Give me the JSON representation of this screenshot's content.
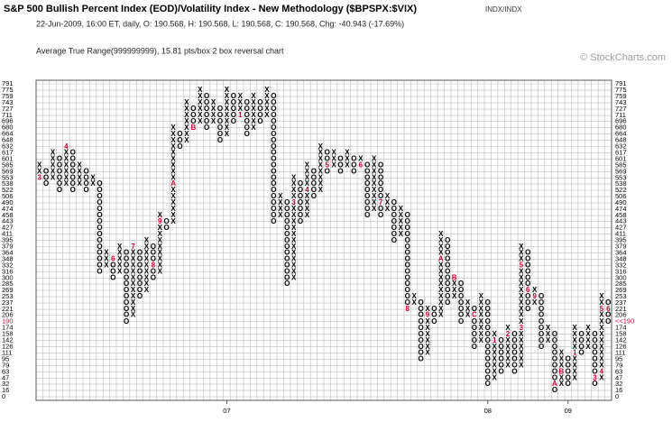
{
  "chart_data": {
    "type": "point_and_figure",
    "title": "S&P 500 Bullish Percent Index (EOD)/Volatility Index - New Methodology ($BPSPX:$VIX)",
    "exchange": "INDX/INDX",
    "subtitle": "22-Jun-2009, 16:00 ET, daily, O: 190.568, H: 190.568, L: 190.568, C: 190.568, Chg: -40.943 (-17.69%)",
    "description": "Average True Range(999999999), 15.81 pts/box 2 box reversal chart",
    "copyright": "© StockCharts.com",
    "last_price": {
      "value": 190,
      "label": "<<190"
    },
    "ylim": [
      0,
      791
    ],
    "yticks": [
      791,
      775,
      759,
      743,
      727,
      711,
      696,
      680,
      664,
      648,
      632,
      617,
      601,
      585,
      569,
      553,
      538,
      522,
      506,
      490,
      474,
      458,
      443,
      427,
      411,
      395,
      379,
      364,
      348,
      332,
      316,
      300,
      285,
      269,
      253,
      237,
      221,
      206,
      190,
      174,
      158,
      142,
      126,
      111,
      95,
      79,
      63,
      47,
      32,
      16,
      0
    ],
    "x_color": "#000000",
    "o_color": "#000000",
    "mark_color": "#cc0033",
    "grid": true,
    "columns": [
      {
        "kind": "X",
        "low": 553,
        "high": 585,
        "marks": [
          {
            "price": 553,
            "label": "3"
          }
        ]
      },
      {
        "kind": "O",
        "low": 538,
        "high": 569
      },
      {
        "kind": "X",
        "low": 553,
        "high": 617
      },
      {
        "kind": "O",
        "low": 522,
        "high": 601
      },
      {
        "kind": "X",
        "low": 538,
        "high": 632,
        "marks": [
          {
            "price": 632,
            "label": "4"
          }
        ]
      },
      {
        "kind": "O",
        "low": 522,
        "high": 617
      },
      {
        "kind": "X",
        "low": 538,
        "high": 585
      },
      {
        "kind": "O",
        "low": 522,
        "high": 569
      },
      {
        "kind": "X",
        "low": 538,
        "high": 553
      },
      {
        "kind": "O",
        "low": 316,
        "high": 538
      },
      {
        "kind": "X",
        "low": 332,
        "high": 364
      },
      {
        "kind": "O",
        "low": 300,
        "high": 348,
        "marks": [
          {
            "price": 348,
            "label": "6"
          }
        ]
      },
      {
        "kind": "X",
        "low": 316,
        "high": 379
      },
      {
        "kind": "O",
        "low": 190,
        "high": 364
      },
      {
        "kind": "X",
        "low": 206,
        "high": 379,
        "marks": [
          {
            "price": 379,
            "label": "7"
          }
        ]
      },
      {
        "kind": "O",
        "low": 253,
        "high": 364
      },
      {
        "kind": "X",
        "low": 269,
        "high": 395
      },
      {
        "kind": "O",
        "low": 300,
        "high": 379,
        "marks": [
          {
            "price": 332,
            "label": "8"
          }
        ]
      },
      {
        "kind": "X",
        "low": 316,
        "high": 458,
        "marks": [
          {
            "price": 443,
            "label": "9"
          }
        ]
      },
      {
        "kind": "O",
        "low": 427,
        "high": 443
      },
      {
        "kind": "X",
        "low": 443,
        "high": 680,
        "marks": [
          {
            "price": 538,
            "label": "A"
          }
        ]
      },
      {
        "kind": "O",
        "low": 632,
        "high": 664
      },
      {
        "kind": "X",
        "low": 648,
        "high": 743
      },
      {
        "kind": "O",
        "low": 680,
        "high": 727,
        "marks": [
          {
            "price": 680,
            "label": "B"
          }
        ]
      },
      {
        "kind": "X",
        "low": 696,
        "high": 775
      },
      {
        "kind": "O",
        "low": 680,
        "high": 759
      },
      {
        "kind": "X",
        "low": 696,
        "high": 743
      },
      {
        "kind": "O",
        "low": 648,
        "high": 727
      },
      {
        "kind": "X",
        "low": 664,
        "high": 775,
        "x_label": "07"
      },
      {
        "kind": "O",
        "low": 696,
        "high": 759
      },
      {
        "kind": "X",
        "low": 711,
        "high": 759,
        "marks": [
          {
            "price": 711,
            "label": "1"
          }
        ]
      },
      {
        "kind": "O",
        "low": 664,
        "high": 743
      },
      {
        "kind": "X",
        "low": 680,
        "high": 759
      },
      {
        "kind": "O",
        "low": 696,
        "high": 743
      },
      {
        "kind": "X",
        "low": 711,
        "high": 775
      },
      {
        "kind": "O",
        "low": 443,
        "high": 759
      },
      {
        "kind": "X",
        "low": 458,
        "high": 506
      },
      {
        "kind": "O",
        "low": 285,
        "high": 490
      },
      {
        "kind": "X",
        "low": 300,
        "high": 553,
        "marks": [
          {
            "price": 490,
            "label": "3"
          }
        ]
      },
      {
        "kind": "O",
        "low": 443,
        "high": 538
      },
      {
        "kind": "X",
        "low": 458,
        "high": 585,
        "marks": [
          {
            "price": 522,
            "label": "4"
          }
        ]
      },
      {
        "kind": "O",
        "low": 506,
        "high": 569
      },
      {
        "kind": "X",
        "low": 522,
        "high": 632
      },
      {
        "kind": "O",
        "low": 569,
        "high": 617,
        "marks": [
          {
            "price": 585,
            "label": "5"
          }
        ]
      },
      {
        "kind": "X",
        "low": 585,
        "high": 617
      },
      {
        "kind": "O",
        "low": 569,
        "high": 601
      },
      {
        "kind": "X",
        "low": 585,
        "high": 617
      },
      {
        "kind": "O",
        "low": 569,
        "high": 601
      },
      {
        "kind": "X",
        "low": 585,
        "high": 601,
        "marks": [
          {
            "price": 585,
            "label": "6"
          }
        ]
      },
      {
        "kind": "O",
        "low": 458,
        "high": 585
      },
      {
        "kind": "X",
        "low": 474,
        "high": 601
      },
      {
        "kind": "O",
        "low": 458,
        "high": 585,
        "marks": [
          {
            "price": 490,
            "label": "7"
          }
        ]
      },
      {
        "kind": "X",
        "low": 474,
        "high": 506
      },
      {
        "kind": "O",
        "low": 395,
        "high": 490
      },
      {
        "kind": "X",
        "low": 411,
        "high": 474
      },
      {
        "kind": "O",
        "low": 221,
        "high": 458,
        "marks": [
          {
            "price": 221,
            "label": "8"
          }
        ]
      },
      {
        "kind": "X",
        "low": 237,
        "high": 253
      },
      {
        "kind": "O",
        "low": 95,
        "high": 237
      },
      {
        "kind": "X",
        "low": 111,
        "high": 221,
        "marks": [
          {
            "price": 206,
            "label": "9"
          }
        ]
      },
      {
        "kind": "O",
        "low": 190,
        "high": 221
      },
      {
        "kind": "X",
        "low": 206,
        "high": 411,
        "marks": [
          {
            "price": 348,
            "label": "A"
          }
        ]
      },
      {
        "kind": "O",
        "low": 237,
        "high": 395
      },
      {
        "kind": "X",
        "low": 253,
        "high": 300,
        "marks": [
          {
            "price": 300,
            "label": "B"
          }
        ]
      },
      {
        "kind": "O",
        "low": 190,
        "high": 285
      },
      {
        "kind": "X",
        "low": 206,
        "high": 237
      },
      {
        "kind": "O",
        "low": 126,
        "high": 221,
        "marks": [
          {
            "price": 206,
            "label": "C"
          }
        ]
      },
      {
        "kind": "X",
        "low": 142,
        "high": 253
      },
      {
        "kind": "O",
        "low": 32,
        "high": 237,
        "x_label": "08"
      },
      {
        "kind": "X",
        "low": 47,
        "high": 158,
        "marks": [
          {
            "price": 142,
            "label": "1"
          }
        ]
      },
      {
        "kind": "O",
        "low": 63,
        "high": 142
      },
      {
        "kind": "X",
        "low": 79,
        "high": 174,
        "marks": [
          {
            "price": 158,
            "label": "2"
          }
        ]
      },
      {
        "kind": "O",
        "low": 63,
        "high": 158
      },
      {
        "kind": "X",
        "low": 79,
        "high": 379,
        "marks": [
          {
            "price": 174,
            "label": "3"
          },
          {
            "price": 332,
            "label": "5"
          }
        ]
      },
      {
        "kind": "O",
        "low": 221,
        "high": 364,
        "marks": [
          {
            "price": 269,
            "label": "6"
          }
        ]
      },
      {
        "kind": "X",
        "low": 237,
        "high": 269,
        "marks": [
          {
            "price": 253,
            "label": "9"
          }
        ]
      },
      {
        "kind": "O",
        "low": 126,
        "high": 253
      },
      {
        "kind": "X",
        "low": 142,
        "high": 174
      },
      {
        "kind": "O",
        "low": 16,
        "high": 158,
        "marks": [
          {
            "price": 32,
            "label": "A"
          }
        ]
      },
      {
        "kind": "X",
        "low": 32,
        "high": 111,
        "marks": [
          {
            "price": 63,
            "label": "B"
          }
        ]
      },
      {
        "kind": "O",
        "low": 32,
        "high": 95,
        "x_label": "09"
      },
      {
        "kind": "X",
        "low": 47,
        "high": 174,
        "marks": [
          {
            "price": 111,
            "label": "1"
          }
        ]
      },
      {
        "kind": "O",
        "low": 111,
        "high": 158
      },
      {
        "kind": "X",
        "low": 126,
        "high": 174
      },
      {
        "kind": "O",
        "low": 32,
        "high": 158,
        "marks": [
          {
            "price": 47,
            "label": "3"
          }
        ]
      },
      {
        "kind": "X",
        "low": 47,
        "high": 253,
        "marks": [
          {
            "price": 63,
            "label": "4"
          },
          {
            "price": 221,
            "label": "5"
          }
        ]
      },
      {
        "kind": "O",
        "low": 190,
        "high": 237,
        "marks": [
          {
            "price": 221,
            "label": "6"
          }
        ]
      }
    ]
  }
}
